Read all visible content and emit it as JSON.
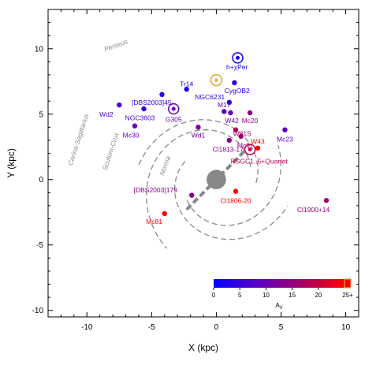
{
  "chart_data": {
    "type": "scatter",
    "xlabel": "X (kpc)",
    "ylabel": "Y (kpc)",
    "xlim": [
      -13,
      11
    ],
    "ylim": [
      -10.5,
      13
    ],
    "xticks": [
      -10,
      -5,
      0,
      5,
      10
    ],
    "yticks": [
      -10,
      -5,
      0,
      5,
      10
    ],
    "xtick_labels": [
      "-10",
      "-5",
      "0",
      "5",
      "10"
    ],
    "ytick_labels": [
      "-10",
      "-5",
      "0",
      "5",
      "10"
    ],
    "galactic_center": {
      "x": 0,
      "y": 0
    },
    "sun": {
      "x": 0,
      "y": 7.6,
      "color": "#e0a83a"
    },
    "arms": [
      {
        "name": "Perseus",
        "label_pos": [
          -7.7,
          10.1
        ],
        "label_rot": -20
      },
      {
        "name": "Carina-Sagittarius",
        "label_pos": [
          -10.5,
          3.0
        ],
        "label_rot": -72
      },
      {
        "name": "Scutum-Crux",
        "label_pos": [
          -8.0,
          2.1
        ],
        "label_rot": -72
      },
      {
        "name": "Norma",
        "label_pos": [
          -3.8,
          1.0
        ],
        "label_rot": -70
      }
    ],
    "points": [
      {
        "name": "h+χPer",
        "x": 1.65,
        "y": 9.3,
        "av": 1.5,
        "label_pos": [
          1.6,
          8.6
        ],
        "marker": "ring"
      },
      {
        "name": "CygOB2",
        "x": 1.4,
        "y": 7.4,
        "av": 3.0,
        "label_pos": [
          1.6,
          6.8
        ]
      },
      {
        "name": "Tr14",
        "x": -2.3,
        "y": 6.9,
        "av": 2.0,
        "label_pos": [
          -2.3,
          7.3
        ]
      },
      {
        "name": "NGC6231",
        "x": 1.0,
        "y": 5.9,
        "av": 3.0,
        "label_pos": [
          -0.5,
          6.3
        ]
      },
      {
        "name": "[DBS2003]45",
        "x": -4.2,
        "y": 6.5,
        "av": 4.0,
        "label_pos": [
          -5.0,
          5.9
        ]
      },
      {
        "name": "M17",
        "x": 0.6,
        "y": 5.2,
        "av": 9.0,
        "label_pos": [
          0.6,
          5.7
        ]
      },
      {
        "name": "Wd2",
        "x": -7.5,
        "y": 5.7,
        "av": 6.0,
        "label_pos": [
          -8.5,
          5.0
        ]
      },
      {
        "name": "NGC3603",
        "x": -5.6,
        "y": 5.4,
        "av": 5.0,
        "label_pos": [
          -5.9,
          4.7
        ]
      },
      {
        "name": "G305",
        "x": -3.3,
        "y": 5.4,
        "av": 10.0,
        "label_pos": [
          -3.3,
          4.6
        ],
        "marker": "ring"
      },
      {
        "name": "W42",
        "x": 1.1,
        "y": 5.1,
        "av": 10.0,
        "label_pos": [
          1.2,
          4.5
        ]
      },
      {
        "name": "Mc20",
        "x": 2.6,
        "y": 5.1,
        "av": 14.0,
        "label_pos": [
          2.6,
          4.5
        ]
      },
      {
        "name": "Mc30",
        "x": -6.3,
        "y": 4.1,
        "av": 10.0,
        "label_pos": [
          -6.6,
          3.4
        ]
      },
      {
        "name": "Wd1",
        "x": -1.4,
        "y": 4.0,
        "av": 12.0,
        "label_pos": [
          -1.4,
          3.4
        ]
      },
      {
        "name": "W31S",
        "x": 1.5,
        "y": 3.8,
        "av": 18.0,
        "label_pos": [
          2.0,
          3.5
        ]
      },
      {
        "name": "Mc23",
        "x": 5.3,
        "y": 3.8,
        "av": 8.0,
        "label_pos": [
          5.3,
          3.1
        ]
      },
      {
        "name": "Mc9",
        "x": 1.9,
        "y": 3.3,
        "av": 16.0,
        "label_pos": [
          2.1,
          2.6
        ]
      },
      {
        "name": "Cl1813-17",
        "x": 1.0,
        "y": 3.0,
        "av": 14.0,
        "label_pos": [
          0.9,
          2.3
        ]
      },
      {
        "name": "W43",
        "x": 3.2,
        "y": 2.4,
        "av": 25.0,
        "label_pos": [
          3.2,
          2.9
        ]
      },
      {
        "name": "RSGC1..5+Quartet",
        "x": 2.6,
        "y": 2.3,
        "av": 19.0,
        "label_pos": [
          3.3,
          1.4
        ],
        "marker": "ring"
      },
      {
        "name": "[DBS2003]179",
        "x": -1.9,
        "y": -1.2,
        "av": 14.0,
        "label_pos": [
          -4.7,
          -0.8
        ]
      },
      {
        "name": "Cl1806-20",
        "x": 1.5,
        "y": -0.9,
        "av": 25.0,
        "label_pos": [
          1.5,
          -1.6
        ]
      },
      {
        "name": "Cl1900+14",
        "x": 8.5,
        "y": -1.6,
        "av": 16.0,
        "label_pos": [
          7.5,
          -2.3
        ]
      },
      {
        "name": "Mc81",
        "x": -4.0,
        "y": -2.6,
        "av": 25.0,
        "label_pos": [
          -4.8,
          -3.2
        ]
      }
    ],
    "colorbar": {
      "label": "A",
      "label_subscript": "V",
      "range": [
        0,
        25
      ],
      "ticks": [
        0,
        5,
        10,
        15,
        20
      ],
      "tick_labels": [
        "0",
        "5",
        "10",
        "15",
        "20"
      ],
      "max_label": "25+",
      "colors": [
        "#0000ff",
        "#5a00c8",
        "#a0006e",
        "#ff0000"
      ]
    }
  }
}
